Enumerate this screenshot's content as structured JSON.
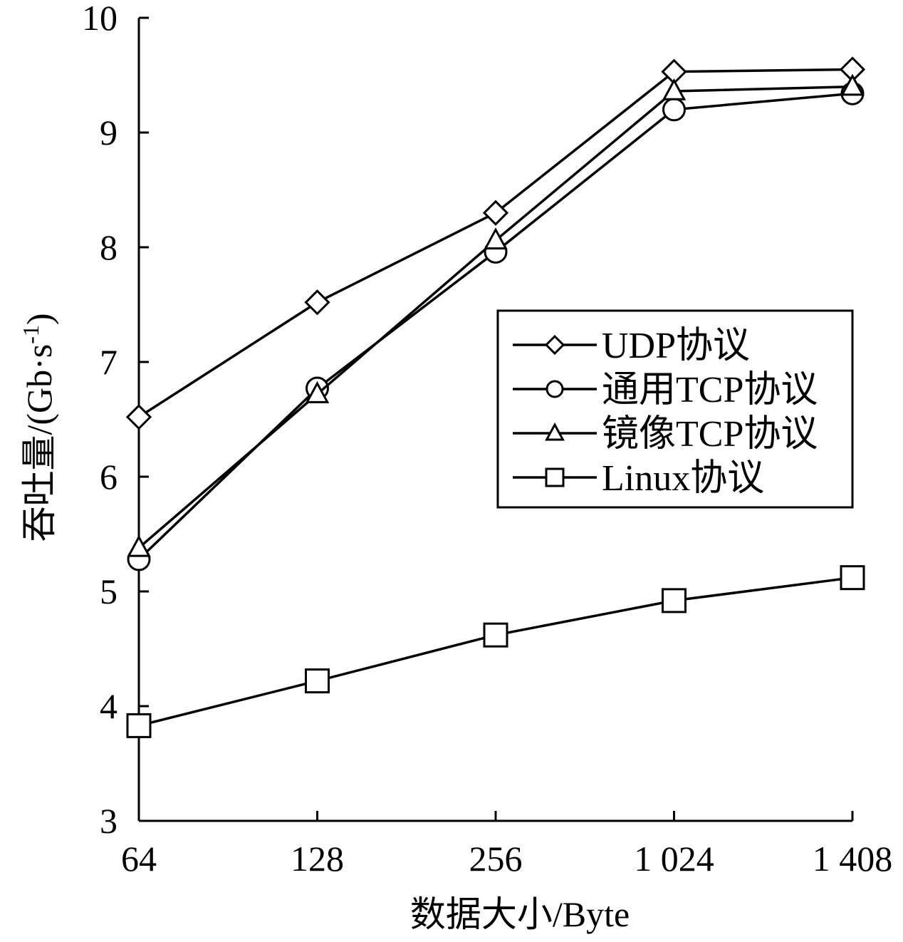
{
  "chart_data": {
    "type": "line",
    "title": "",
    "xlabel": "数据大小/Byte",
    "ylabel": "吞吐量/(Gb·s",
    "ylabel_sup": "-1",
    "ylabel_close": ")",
    "categories": [
      "64",
      "128",
      "256",
      "1 024",
      "1 408"
    ],
    "ylim": [
      3,
      10
    ],
    "yticks": [
      "3",
      "4",
      "5",
      "6",
      "7",
      "8",
      "9",
      "10"
    ],
    "grid": false,
    "legend_position": "right-middle",
    "series": [
      {
        "name": "UDP协议",
        "marker": "diamond",
        "values": [
          6.52,
          7.52,
          8.3,
          9.53,
          9.55
        ]
      },
      {
        "name": "通用TCP协议",
        "marker": "circle",
        "values": [
          5.28,
          6.77,
          7.96,
          9.2,
          9.34
        ]
      },
      {
        "name": "镜像TCP协议",
        "marker": "triangle",
        "values": [
          5.38,
          6.72,
          8.06,
          9.36,
          9.4
        ]
      },
      {
        "name": "Linux协议",
        "marker": "square",
        "values": [
          3.83,
          4.22,
          4.62,
          4.92,
          5.12
        ]
      }
    ]
  }
}
